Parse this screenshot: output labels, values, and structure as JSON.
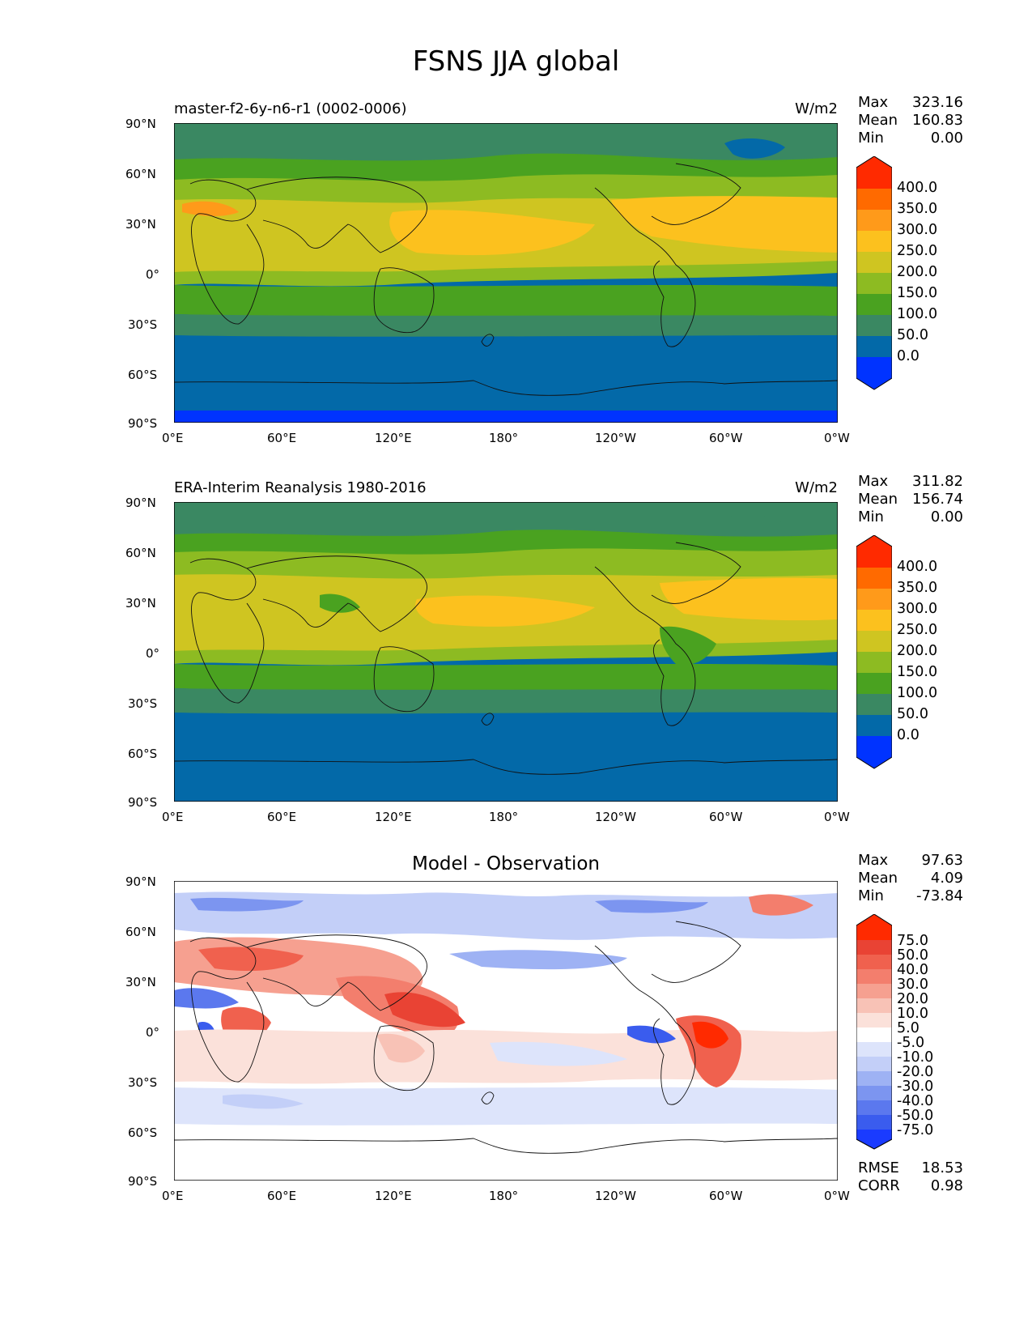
{
  "figure_title": "FSNS JJA global",
  "lat_ticks": [
    "90°N",
    "60°N",
    "30°N",
    "0°",
    "30°S",
    "60°S",
    "90°S"
  ],
  "lon_ticks": [
    "0°E",
    "60°E",
    "120°E",
    "180°",
    "120°W",
    "60°W",
    "0°W"
  ],
  "panels": [
    {
      "title": "master-f2-6y-n6-r1 (0002-0006)",
      "units": "W/m2",
      "stats": [
        {
          "label": "Max",
          "value": "323.16"
        },
        {
          "label": "Mean",
          "value": "160.83"
        },
        {
          "label": "Min",
          "value": "0.00"
        }
      ],
      "colorbar_labels": [
        "400.0",
        "350.0",
        "300.0",
        "250.0",
        "200.0",
        "150.0",
        "100.0",
        "50.0",
        "0.0"
      ]
    },
    {
      "title": "ERA-Interim Reanalysis 1980-2016",
      "units": "W/m2",
      "stats": [
        {
          "label": "Max",
          "value": "311.82"
        },
        {
          "label": "Mean",
          "value": "156.74"
        },
        {
          "label": "Min",
          "value": "0.00"
        }
      ],
      "colorbar_labels": [
        "400.0",
        "350.0",
        "300.0",
        "250.0",
        "200.0",
        "150.0",
        "100.0",
        "50.0",
        "0.0"
      ]
    },
    {
      "title": "Model - Observation",
      "units": "",
      "stats": [
        {
          "label": "Max",
          "value": "97.63"
        },
        {
          "label": "Mean",
          "value": "4.09"
        },
        {
          "label": "Min",
          "value": "-73.84"
        }
      ],
      "colorbar_labels": [
        "75.0",
        "50.0",
        "40.0",
        "30.0",
        "20.0",
        "10.0",
        "5.0",
        "-5.0",
        "-10.0",
        "-20.0",
        "-30.0",
        "-40.0",
        "-50.0",
        "-75.0"
      ],
      "extra_stats": [
        {
          "label": "RMSE",
          "value": "18.53"
        },
        {
          "label": "CORR",
          "value": "0.98"
        }
      ]
    }
  ],
  "colors": {
    "abs_scale": [
      "#ff2a00",
      "#ff6a00",
      "#ff9a1a",
      "#fcc11e",
      "#cfc521",
      "#8dbb22",
      "#4aa220",
      "#3a8862",
      "#0369a8",
      "#0033ff"
    ],
    "diff_scale": [
      "#ff2a00",
      "#e94334",
      "#f0614e",
      "#f37e6d",
      "#f6a090",
      "#f8c2b6",
      "#fbe1da",
      "#ffffff",
      "#dde4fb",
      "#c3cff8",
      "#9eb2f4",
      "#7c95f0",
      "#5b78ee",
      "#3a5cee",
      "#1a3bff"
    ]
  },
  "chart_data": [
    {
      "type": "heatmap",
      "title": "master-f2-6y-n6-r1 (0002-0006)",
      "units": "W/m2",
      "x_ticks": [
        "0°E",
        "60°E",
        "120°E",
        "180°",
        "120°W",
        "60°W",
        "0°W"
      ],
      "y_ticks": [
        "90°N",
        "60°N",
        "30°N",
        "0°",
        "30°S",
        "60°S",
        "90°S"
      ],
      "levels": [
        0,
        50,
        100,
        150,
        200,
        250,
        300,
        350,
        400
      ],
      "stats": {
        "max": 323.16,
        "mean": 160.83,
        "min": 0.0
      }
    },
    {
      "type": "heatmap",
      "title": "ERA-Interim Reanalysis 1980-2016",
      "units": "W/m2",
      "x_ticks": [
        "0°E",
        "60°E",
        "120°E",
        "180°",
        "120°W",
        "60°W",
        "0°W"
      ],
      "y_ticks": [
        "90°N",
        "60°N",
        "30°N",
        "0°",
        "30°S",
        "60°S",
        "90°S"
      ],
      "levels": [
        0,
        50,
        100,
        150,
        200,
        250,
        300,
        350,
        400
      ],
      "stats": {
        "max": 311.82,
        "mean": 156.74,
        "min": 0.0
      }
    },
    {
      "type": "heatmap",
      "title": "Model - Observation",
      "x_ticks": [
        "0°E",
        "60°E",
        "120°E",
        "180°",
        "120°W",
        "60°W",
        "0°W"
      ],
      "y_ticks": [
        "90°N",
        "60°N",
        "30°N",
        "0°",
        "30°S",
        "60°S",
        "90°S"
      ],
      "levels": [
        -75,
        -50,
        -40,
        -30,
        -20,
        -10,
        -5,
        5,
        10,
        20,
        30,
        40,
        50,
        75
      ],
      "stats": {
        "max": 97.63,
        "mean": 4.09,
        "min": -73.84,
        "rmse": 18.53,
        "corr": 0.98
      }
    }
  ]
}
